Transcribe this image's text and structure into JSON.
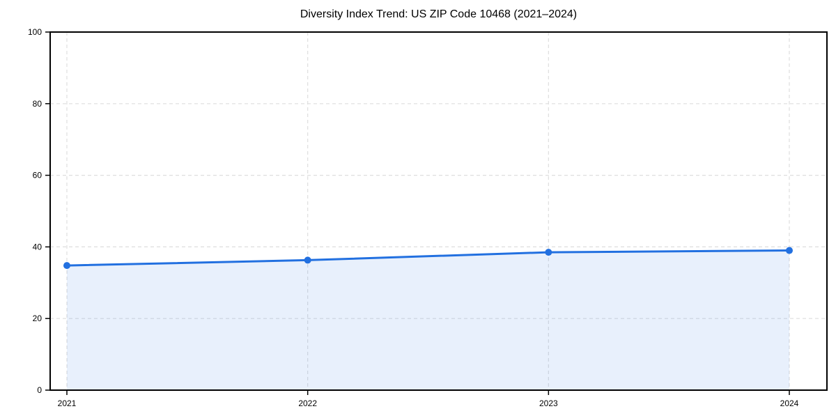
{
  "chart_data": {
    "type": "area",
    "title": "Diversity Index Trend: US ZIP Code 10468 (2021–2024)",
    "categories": [
      "2021",
      "2022",
      "2023",
      "2024"
    ],
    "series": [
      {
        "name": "Diversity Index",
        "values": [
          34.8,
          36.3,
          38.5,
          39.0
        ]
      }
    ],
    "xlabel": "",
    "ylabel": "",
    "ylim": [
      0,
      100
    ],
    "yticks": [
      0,
      20,
      40,
      60,
      80,
      100
    ],
    "ytick_labels": [
      "0",
      "20",
      "40",
      "60",
      "80",
      "100"
    ],
    "grid": true,
    "grid_style": "dashed",
    "legend": "none",
    "colors": {
      "line": "#2270e0",
      "marker": "#2270e0",
      "fill": "rgba(34,112,224,0.10)",
      "grid": "#dedede",
      "axis": "#000000",
      "tick_text": "#000000",
      "background": "#ffffff"
    }
  }
}
